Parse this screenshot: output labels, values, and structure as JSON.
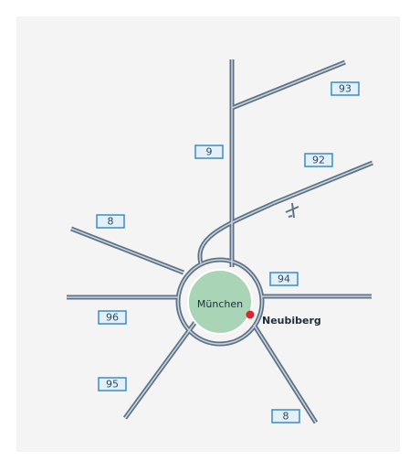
{
  "map": {
    "city": "München",
    "place": "Neubiberg",
    "road_signs": [
      {
        "label": "93"
      },
      {
        "label": "9"
      },
      {
        "label": "92"
      },
      {
        "label": "8"
      },
      {
        "label": "94"
      },
      {
        "label": "96"
      },
      {
        "label": "95"
      },
      {
        "label": "8"
      }
    ]
  }
}
